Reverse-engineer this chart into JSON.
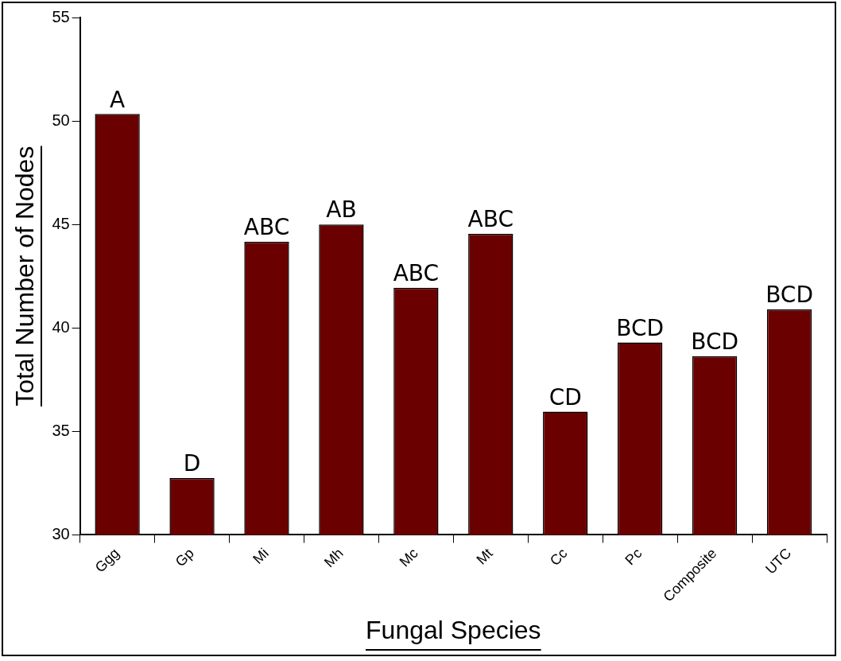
{
  "chart_data": {
    "type": "bar",
    "xlabel": "Fungal Species",
    "ylabel": "Total Number of Nodes",
    "categories": [
      "Ggg",
      "Gp",
      "Mi",
      "Mh",
      "Mc",
      "Mt",
      "Cc",
      "Pc",
      "Composite",
      "UTC"
    ],
    "values": [
      50.34,
      32.75,
      44.16,
      45.0,
      41.94,
      44.55,
      35.96,
      39.3,
      38.64,
      40.9
    ],
    "color": "#6b0000",
    "ylim": [
      30,
      55
    ],
    "yticks": [
      30,
      35,
      40,
      45,
      50,
      55
    ],
    "grid": false,
    "legend": false,
    "annotations": [
      {
        "text": "A",
        "x": "Ggg",
        "y": 50.34
      },
      {
        "text": "D",
        "x": "Gp",
        "y": 32.75
      },
      {
        "text": "ABC",
        "x": "Mi",
        "y": 44.16
      },
      {
        "text": "AB",
        "x": "Mh",
        "y": 45.0
      },
      {
        "text": "ABC",
        "x": "Mc",
        "y": 41.94
      },
      {
        "text": "ABC",
        "x": "Mt",
        "y": 44.55
      },
      {
        "text": "CD",
        "x": "Cc",
        "y": 35.96
      },
      {
        "text": "BCD",
        "x": "Pc",
        "y": 39.3
      },
      {
        "text": "BCD",
        "x": "Composite",
        "y": 38.64
      },
      {
        "text": "BCD",
        "x": "UTC",
        "y": 40.9
      }
    ]
  }
}
